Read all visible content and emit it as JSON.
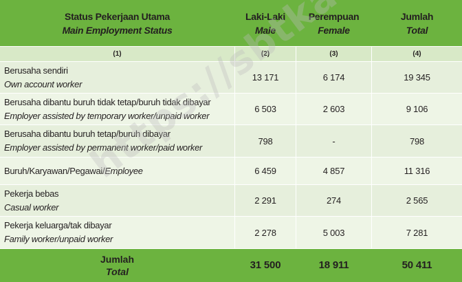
{
  "header": {
    "status_id": "Status Pekerjaan Utama",
    "status_en": "Main Employment Status",
    "male_id": "Laki-Laki",
    "male_en": "Male",
    "female_id": "Perempuan",
    "female_en": "Female",
    "total_id": "Jumlah",
    "total_en": "Total"
  },
  "colnums": [
    "(1)",
    "(2)",
    "(3)",
    "(4)"
  ],
  "rows": [
    {
      "label_id": "Berusaha sendiri",
      "label_en": "Own account worker",
      "male": "13 171",
      "female": "6 174",
      "total": "19 345"
    },
    {
      "label_id": "Berusaha dibantu buruh tidak tetap/buruh tidak dibayar",
      "label_en": "Employer assisted by temporary worker/unpaid worker",
      "male": "6 503",
      "female": "2 603",
      "total": "9 106"
    },
    {
      "label_id": "Berusaha dibantu buruh tetap/buruh dibayar",
      "label_en": "Employer assisted by permanent worker/paid worker",
      "male": "798",
      "female": "-",
      "total": "798"
    },
    {
      "label_id": "Buruh/Karyawan/Pegawai/",
      "label_en": "Employee",
      "male": "6 459",
      "female": "4 857",
      "total": "11 316"
    },
    {
      "label_id": "Pekerja bebas",
      "label_en": "Casual worker",
      "male": "2 291",
      "female": "274",
      "total": "2 565"
    },
    {
      "label_id": "Pekerja keluarga/tak dibayar",
      "label_en": "Family worker/unpaid worker",
      "male": "2 278",
      "female": "5 003",
      "total": "7 281"
    }
  ],
  "footer": {
    "label_id": "Jumlah",
    "label_en": "Total",
    "male": "31 500",
    "female": "18 911",
    "total": "50 411"
  },
  "watermark": "https://sbtkab.bps.go.id",
  "colors": {
    "header_green": "#6cb33f",
    "colnum_green": "#d8e9c7",
    "row_light": "#e6efdc",
    "row_lighter": "#eef5e6"
  }
}
